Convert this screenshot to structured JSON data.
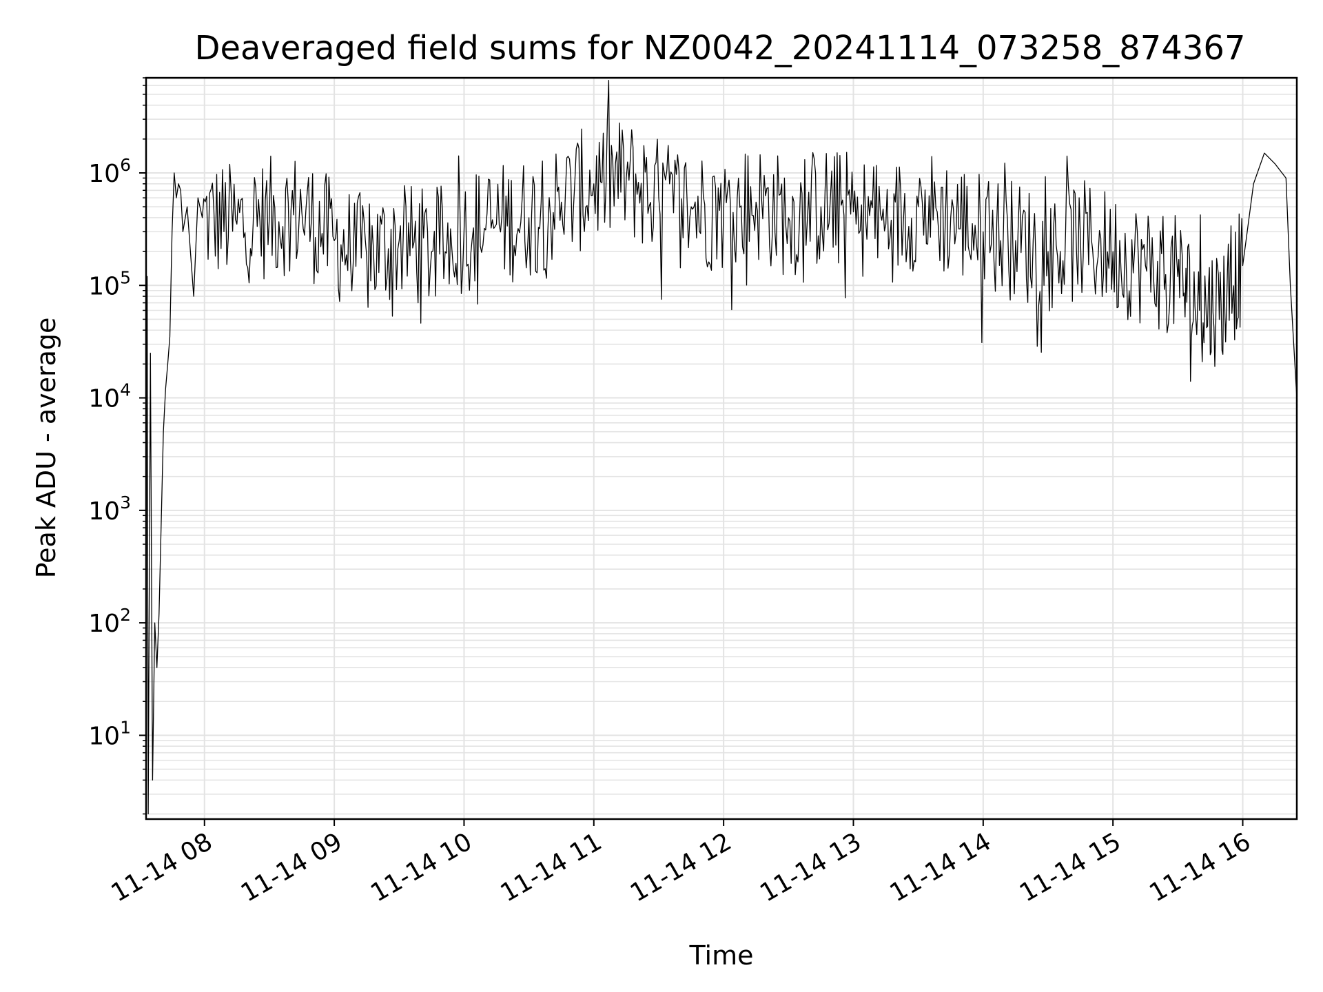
{
  "chart_data": {
    "type": "line",
    "title": "Deaveraged field sums for NZ0042_20241114_073258_874367",
    "xlabel": "Time",
    "ylabel": "Peak ADU - average",
    "yscale": "log",
    "grid": true,
    "line_color": "#000000",
    "grid_color": "#e3e3e3",
    "xlim": [
      "2024-11-14T07:33",
      "2024-11-14T16:25"
    ],
    "ylim": [
      1.8,
      7000000
    ],
    "x_ticks": [
      {
        "value": "2024-11-14T08:00",
        "label": "11-14 08"
      },
      {
        "value": "2024-11-14T09:00",
        "label": "11-14 09"
      },
      {
        "value": "2024-11-14T10:00",
        "label": "11-14 10"
      },
      {
        "value": "2024-11-14T11:00",
        "label": "11-14 11"
      },
      {
        "value": "2024-11-14T12:00",
        "label": "11-14 12"
      },
      {
        "value": "2024-11-14T13:00",
        "label": "11-14 13"
      },
      {
        "value": "2024-11-14T14:00",
        "label": "11-14 14"
      },
      {
        "value": "2024-11-14T15:00",
        "label": "11-14 15"
      },
      {
        "value": "2024-11-14T16:00",
        "label": "11-14 16"
      }
    ],
    "y_ticks": [
      {
        "value": 10,
        "base": "10",
        "exp": "1"
      },
      {
        "value": 100,
        "base": "10",
        "exp": "2"
      },
      {
        "value": 1000,
        "base": "10",
        "exp": "3"
      },
      {
        "value": 10000,
        "base": "10",
        "exp": "4"
      },
      {
        "value": 100000,
        "base": "10",
        "exp": "5"
      },
      {
        "value": 1000000,
        "base": "10",
        "exp": "6"
      }
    ],
    "series": [
      {
        "x": [
          "2024-11-14T07:33",
          "2024-11-14T07:33:30",
          "2024-11-14T07:34",
          "2024-11-14T07:35",
          "2024-11-14T07:36",
          "2024-11-14T07:37",
          "2024-11-14T07:38",
          "2024-11-14T07:39",
          "2024-11-14T07:40",
          "2024-11-14T07:41",
          "2024-11-14T07:42",
          "2024-11-14T07:43",
          "2024-11-14T07:44",
          "2024-11-14T07:45",
          "2024-11-14T07:46",
          "2024-11-14T07:47",
          "2024-11-14T07:48",
          "2024-11-14T07:49",
          "2024-11-14T07:50",
          "2024-11-14T07:52",
          "2024-11-14T07:55",
          "2024-11-14T07:57",
          "2024-11-14T07:59",
          "2024-11-14T08:15",
          "2024-11-14T08:30",
          "2024-11-14T08:45",
          "2024-11-14T09:00",
          "2024-11-14T09:15",
          "2024-11-14T09:30",
          "2024-11-14T09:45",
          "2024-11-14T10:00",
          "2024-11-14T10:15",
          "2024-11-14T10:30",
          "2024-11-14T10:45",
          "2024-11-14T11:00",
          "2024-11-14T11:15",
          "2024-11-14T11:30",
          "2024-11-14T11:45",
          "2024-11-14T12:00",
          "2024-11-14T12:15",
          "2024-11-14T12:30",
          "2024-11-14T12:45",
          "2024-11-14T13:00",
          "2024-11-14T13:15",
          "2024-11-14T13:30",
          "2024-11-14T13:45",
          "2024-11-14T14:00",
          "2024-11-14T14:15",
          "2024-11-14T14:30",
          "2024-11-14T14:45",
          "2024-11-14T15:00",
          "2024-11-14T15:15",
          "2024-11-14T15:30",
          "2024-11-14T15:40",
          "2024-11-14T15:50",
          "2024-11-14T16:00",
          "2024-11-14T16:05",
          "2024-11-14T16:10",
          "2024-11-14T16:15",
          "2024-11-14T16:20",
          "2024-11-14T16:22",
          "2024-11-14T16:25"
        ],
        "y": [
          100000,
          120000,
          2,
          25000,
          4,
          100,
          40,
          120,
          800,
          5000,
          12000,
          20000,
          35000,
          300000,
          1000000,
          600000,
          800000,
          700000,
          300000,
          500000,
          80000,
          600000,
          400000,
          350000,
          400000,
          450000,
          250000,
          180000,
          250000,
          200000,
          300000,
          350000,
          400000,
          550000,
          800000,
          900000,
          600000,
          500000,
          450000,
          550000,
          400000,
          500000,
          450000,
          350000,
          500000,
          400000,
          300000,
          250000,
          200000,
          250000,
          200000,
          150000,
          120000,
          60000,
          70000,
          150000,
          800000,
          1500000,
          1200000,
          900000,
          100000,
          10000
        ],
        "noise": 0.55,
        "samples_per_interval": 24
      }
    ]
  }
}
